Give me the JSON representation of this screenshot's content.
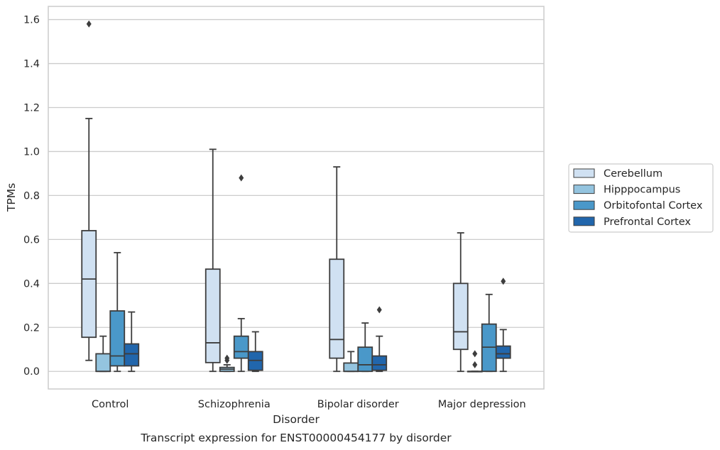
{
  "chart_data": {
    "type": "box",
    "title": "",
    "caption": "Transcript expression for ENST00000454177 by disorder",
    "xlabel": "Disorder",
    "ylabel": "TPMs",
    "ylim": [
      -0.08,
      1.66
    ],
    "yticks": [
      "0.0",
      "0.2",
      "0.4",
      "0.6",
      "0.8",
      "1.0",
      "1.2",
      "1.4",
      "1.6"
    ],
    "ytick_values": [
      0.0,
      0.2,
      0.4,
      0.6,
      0.8,
      1.0,
      1.2,
      1.4,
      1.6
    ],
    "grid": "horizontal",
    "legend_placement": "right",
    "categories": [
      "Control",
      "Schizophrenia",
      "Bipolar disorder",
      "Major depression"
    ],
    "series": [
      {
        "name": "Cerebellum",
        "color": "#d0e1f2",
        "boxes": [
          {
            "whislo": 0.05,
            "q1": 0.155,
            "med": 0.42,
            "q3": 0.64,
            "whishi": 1.15,
            "fliers": [
              1.58
            ]
          },
          {
            "whislo": 0.0,
            "q1": 0.04,
            "med": 0.13,
            "q3": 0.465,
            "whishi": 1.01,
            "fliers": []
          },
          {
            "whislo": 0.0,
            "q1": 0.06,
            "med": 0.145,
            "q3": 0.51,
            "whishi": 0.93,
            "fliers": []
          },
          {
            "whislo": 0.0,
            "q1": 0.1,
            "med": 0.18,
            "q3": 0.4,
            "whishi": 0.63,
            "fliers": []
          }
        ]
      },
      {
        "name": "Hipppocampus",
        "color": "#94c4df",
        "boxes": [
          {
            "whislo": 0.0,
            "q1": 0.0,
            "med": 0.0,
            "q3": 0.08,
            "whishi": 0.16,
            "fliers": []
          },
          {
            "whislo": 0.0,
            "q1": 0.0,
            "med": 0.01,
            "q3": 0.018,
            "whishi": 0.03,
            "fliers": [
              0.05,
              0.06
            ]
          },
          {
            "whislo": 0.0,
            "q1": 0.0,
            "med": 0.0,
            "q3": 0.038,
            "whishi": 0.09,
            "fliers": []
          },
          {
            "whislo": 0.0,
            "q1": 0.0,
            "med": 0.0,
            "q3": 0.0,
            "whishi": 0.0,
            "fliers": [
              0.03,
              0.08
            ]
          }
        ]
      },
      {
        "name": "Orbitofontal Cortex",
        "color": "#4a98c9",
        "boxes": [
          {
            "whislo": 0.0,
            "q1": 0.025,
            "med": 0.07,
            "q3": 0.275,
            "whishi": 0.54,
            "fliers": []
          },
          {
            "whislo": 0.0,
            "q1": 0.06,
            "med": 0.09,
            "q3": 0.16,
            "whishi": 0.24,
            "fliers": [
              0.88
            ]
          },
          {
            "whislo": 0.0,
            "q1": 0.0,
            "med": 0.03,
            "q3": 0.11,
            "whishi": 0.22,
            "fliers": []
          },
          {
            "whislo": 0.0,
            "q1": 0.0,
            "med": 0.11,
            "q3": 0.215,
            "whishi": 0.35,
            "fliers": []
          }
        ]
      },
      {
        "name": "Prefrontal Cortex",
        "color": "#2166ac",
        "boxes": [
          {
            "whislo": 0.0,
            "q1": 0.025,
            "med": 0.08,
            "q3": 0.125,
            "whishi": 0.27,
            "fliers": []
          },
          {
            "whislo": 0.0,
            "q1": 0.005,
            "med": 0.05,
            "q3": 0.09,
            "whishi": 0.18,
            "fliers": []
          },
          {
            "whislo": 0.0,
            "q1": 0.005,
            "med": 0.03,
            "q3": 0.07,
            "whishi": 0.16,
            "fliers": [
              0.28
            ]
          },
          {
            "whislo": 0.0,
            "q1": 0.06,
            "med": 0.08,
            "q3": 0.115,
            "whishi": 0.19,
            "fliers": [
              0.41
            ]
          }
        ]
      }
    ]
  },
  "colors": {
    "line": "#3d3d3d",
    "grid": "#cccccc",
    "frame": "#cccccc",
    "text": "#262626"
  }
}
